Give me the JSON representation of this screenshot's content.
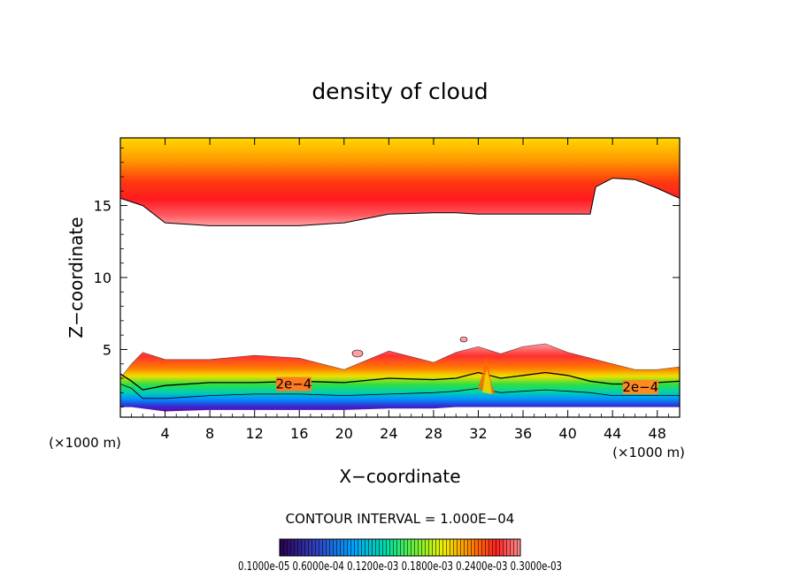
{
  "chart_data": {
    "type": "heatmap",
    "title": "density of cloud",
    "xlabel": "X−coordinate",
    "ylabel": "Z−coordinate",
    "x_unit_left": "(×1000 m)",
    "x_unit_right": "(×1000 m)",
    "xlim": [
      0,
      50
    ],
    "ylim": [
      0.3,
      19.7
    ],
    "xticks": [
      4,
      8,
      12,
      16,
      20,
      24,
      28,
      32,
      36,
      40,
      44,
      48
    ],
    "yticks": [
      5,
      10,
      15
    ],
    "x_tick_labels": [
      "4",
      "8",
      "12",
      "16",
      "20",
      "24",
      "28",
      "32",
      "36",
      "40",
      "44",
      "48"
    ],
    "y_tick_labels": [
      "5",
      "10",
      "15"
    ],
    "contour_interval_text": "CONTOUR INTERVAL = 1.000E−04",
    "contour_labels": [
      {
        "text": "2e−4",
        "x": 15.5,
        "z": 2.6
      },
      {
        "text": "2e−4",
        "x": 46.5,
        "z": 2.4
      }
    ],
    "colorbar_labels_text": "0.1000e-05 0.6000e-04 0.1200e-03 0.1800e-03 0.2400e-03 0.3000e-03",
    "upper_layer": {
      "x": [
        0,
        2,
        4,
        8,
        12,
        16,
        20,
        24,
        28,
        30,
        32,
        34,
        36,
        38,
        40,
        42,
        42.5,
        44,
        46,
        48,
        50
      ],
      "bottom": [
        15.5,
        15.0,
        13.8,
        13.6,
        13.6,
        13.6,
        13.8,
        14.4,
        14.5,
        14.5,
        14.4,
        14.4,
        14.4,
        14.4,
        14.4,
        14.4,
        16.3,
        16.9,
        16.8,
        16.2,
        15.5
      ]
    },
    "lower_layer": {
      "x": [
        0,
        1,
        2,
        4,
        8,
        12,
        16,
        20,
        24,
        28,
        30,
        32,
        34,
        36,
        38,
        40,
        42,
        44,
        46,
        48,
        50
      ],
      "top": [
        3.0,
        4.0,
        4.8,
        4.3,
        4.3,
        4.6,
        4.4,
        3.6,
        4.9,
        4.1,
        4.8,
        5.2,
        4.7,
        5.2,
        5.4,
        4.8,
        4.4,
        4.0,
        3.6,
        3.6,
        3.8
      ],
      "contour_2e4": [
        3.3,
        2.8,
        2.2,
        2.5,
        2.7,
        2.7,
        2.8,
        2.7,
        3.0,
        2.9,
        3.0,
        3.4,
        3.0,
        3.2,
        3.4,
        3.2,
        2.8,
        2.6,
        2.6,
        2.7,
        2.8
      ],
      "contour_low": [
        2.6,
        2.3,
        1.6,
        1.6,
        1.8,
        1.9,
        1.9,
        1.8,
        1.9,
        2.0,
        2.1,
        2.3,
        2.0,
        2.1,
        2.2,
        2.1,
        2.0,
        1.8,
        1.8,
        1.8,
        1.8
      ],
      "base": [
        1.0,
        1.0,
        0.9,
        0.7,
        0.8,
        0.8,
        0.8,
        0.8,
        0.9,
        0.9,
        1.0,
        1.0,
        1.0,
        1.0,
        1.0,
        1.0,
        1.0,
        1.0,
        1.0,
        1.0,
        1.0
      ]
    }
  }
}
